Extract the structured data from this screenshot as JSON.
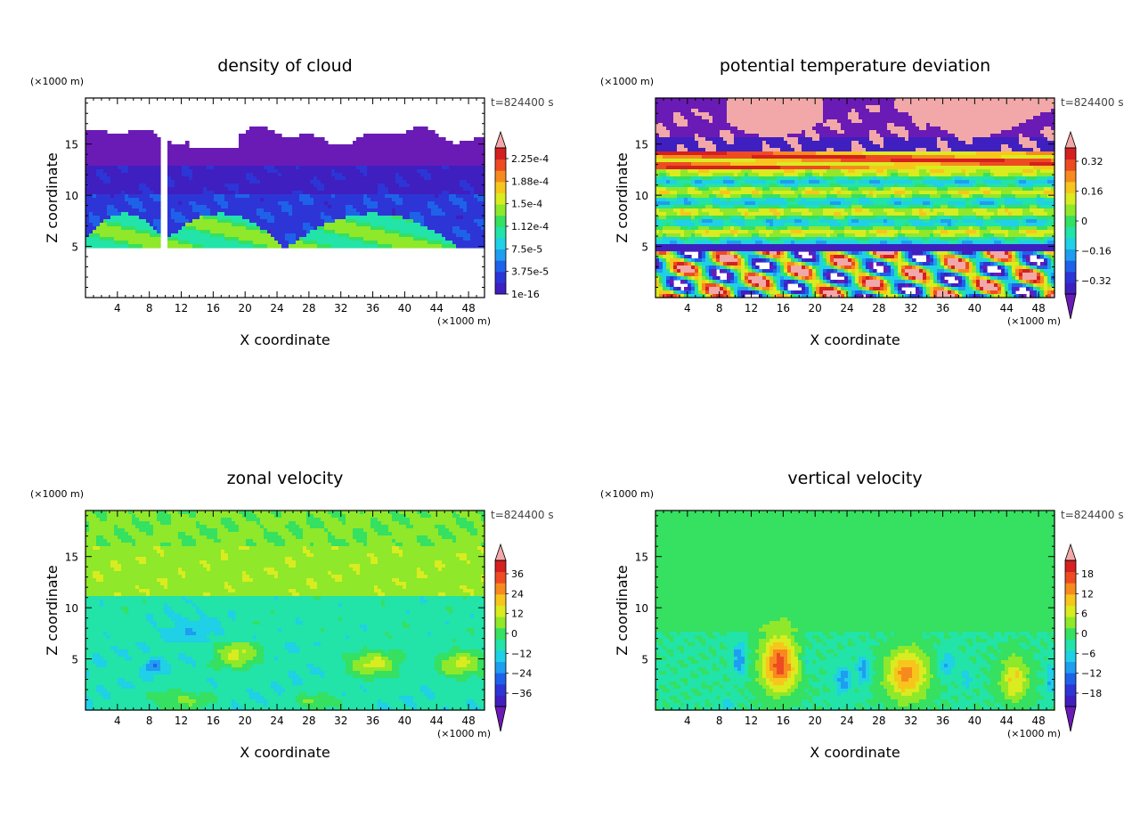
{
  "chart_data": [
    {
      "type": "heatmap",
      "title": "density of cloud",
      "xlabel": "X coordinate",
      "ylabel": "Z coordinate",
      "x_unit": "(×1000 m)",
      "y_unit": "(×1000 m)",
      "time_label": "t=824400 s",
      "xlim": [
        0,
        50
      ],
      "ylim": [
        0,
        19.5
      ],
      "x_ticks": [
        4,
        8,
        12,
        16,
        20,
        24,
        28,
        32,
        36,
        40,
        44,
        48
      ],
      "y_ticks": [
        5,
        10,
        15
      ],
      "colorbar": {
        "labels": [
          "2.25e-4",
          "1.88e-4",
          "1.5e-4",
          "1.12e-4",
          "7.5e-5",
          "3.75e-5",
          "1e-16"
        ],
        "colors": [
          "#6a1bb5",
          "#3f1fbf",
          "#2d35d6",
          "#1f62ea",
          "#1f9df0",
          "#1fd0e6",
          "#22e3a8",
          "#36e060",
          "#8fe82a",
          "#d8ec20",
          "#f7c61c",
          "#f78a1e",
          "#ef4b23",
          "#d4201f",
          "#f2a8a8"
        ],
        "extend": "max"
      },
      "kind": "cloud"
    },
    {
      "type": "heatmap",
      "title": "potential temperature deviation",
      "xlabel": "X coordinate",
      "ylabel": "Z coordinate",
      "x_unit": "(×1000 m)",
      "y_unit": "(×1000 m)",
      "time_label": "t=824400 s",
      "xlim": [
        0,
        50
      ],
      "ylim": [
        0,
        19.5
      ],
      "x_ticks": [
        4,
        8,
        12,
        16,
        20,
        24,
        28,
        32,
        36,
        40,
        44,
        48
      ],
      "y_ticks": [
        5,
        10,
        15
      ],
      "colorbar": {
        "labels": [
          "0.32",
          "0.16",
          "0",
          "−0.16",
          "−0.32"
        ],
        "colors": [
          "#6a1bb5",
          "#3f1fbf",
          "#2d35d6",
          "#1f62ea",
          "#1f9df0",
          "#1fd0e6",
          "#22e3a8",
          "#36e060",
          "#8fe82a",
          "#d8ec20",
          "#f7c61c",
          "#f78a1e",
          "#ef4b23",
          "#d4201f",
          "#f2a8a8"
        ],
        "extend": "both"
      },
      "kind": "theta"
    },
    {
      "type": "heatmap",
      "title": "zonal velocity",
      "xlabel": "X coordinate",
      "ylabel": "Z coordinate",
      "x_unit": "(×1000 m)",
      "y_unit": "(×1000 m)",
      "time_label": "t=824400 s",
      "xlim": [
        0,
        50
      ],
      "ylim": [
        0,
        19.5
      ],
      "x_ticks": [
        4,
        8,
        12,
        16,
        20,
        24,
        28,
        32,
        36,
        40,
        44,
        48
      ],
      "y_ticks": [
        5,
        10,
        15
      ],
      "colorbar": {
        "labels": [
          "36",
          "24",
          "12",
          "0",
          "−12",
          "−24",
          "−36"
        ],
        "colors": [
          "#6a1bb5",
          "#3f1fbf",
          "#2d35d6",
          "#1f62ea",
          "#1f9df0",
          "#1fd0e6",
          "#22e3a8",
          "#36e060",
          "#8fe82a",
          "#d8ec20",
          "#f7c61c",
          "#f78a1e",
          "#ef4b23",
          "#d4201f",
          "#f2a8a8"
        ],
        "extend": "both"
      },
      "kind": "zonal"
    },
    {
      "type": "heatmap",
      "title": "vertical velocity",
      "xlabel": "X coordinate",
      "ylabel": "Z coordinate",
      "x_unit": "(×1000 m)",
      "y_unit": "(×1000 m)",
      "time_label": "t=824400 s",
      "xlim": [
        0,
        50
      ],
      "ylim": [
        0,
        19.5
      ],
      "x_ticks": [
        4,
        8,
        12,
        16,
        20,
        24,
        28,
        32,
        36,
        40,
        44,
        48
      ],
      "y_ticks": [
        5,
        10,
        15
      ],
      "colorbar": {
        "labels": [
          "18",
          "12",
          "6",
          "0",
          "−6",
          "−12",
          "−18"
        ],
        "colors": [
          "#6a1bb5",
          "#3f1fbf",
          "#2d35d6",
          "#1f62ea",
          "#1f9df0",
          "#1fd0e6",
          "#22e3a8",
          "#36e060",
          "#8fe82a",
          "#d8ec20",
          "#f7c61c",
          "#f78a1e",
          "#ef4b23",
          "#d4201f",
          "#f2a8a8"
        ],
        "extend": "both"
      },
      "kind": "vertical"
    }
  ]
}
